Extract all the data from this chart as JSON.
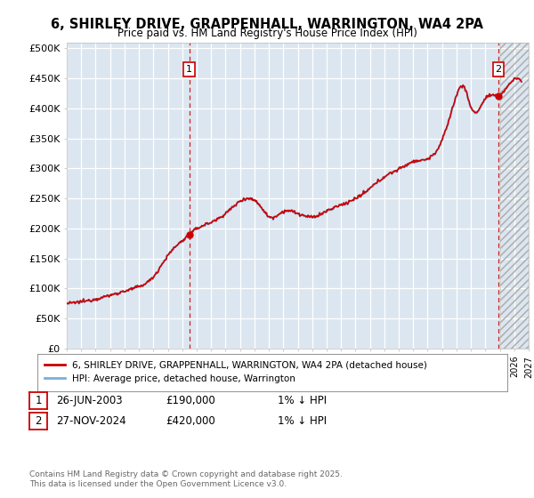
{
  "title": "6, SHIRLEY DRIVE, GRAPPENHALL, WARRINGTON, WA4 2PA",
  "subtitle": "Price paid vs. HM Land Registry's House Price Index (HPI)",
  "plot_bg_color": "#dce6f0",
  "ylabel_ticks": [
    "£0",
    "£50K",
    "£100K",
    "£150K",
    "£200K",
    "£250K",
    "£300K",
    "£350K",
    "£400K",
    "£450K",
    "£500K"
  ],
  "ytick_values": [
    0,
    50000,
    100000,
    150000,
    200000,
    250000,
    300000,
    350000,
    400000,
    450000,
    500000
  ],
  "ylim": [
    0,
    510000
  ],
  "xlim_start": 1995,
  "xlim_end": 2027,
  "hpi_color": "#7ab0d8",
  "price_color": "#cc0000",
  "marker1_x": 2003.48,
  "marker1_y": 190000,
  "marker2_x": 2024.9,
  "marker2_y": 420000,
  "legend_line1": "6, SHIRLEY DRIVE, GRAPPENHALL, WARRINGTON, WA4 2PA (detached house)",
  "legend_line2": "HPI: Average price, detached house, Warrington",
  "note1_num": "1",
  "note1_date": "26-JUN-2003",
  "note1_price": "£190,000",
  "note1_hpi": "1% ↓ HPI",
  "note2_num": "2",
  "note2_date": "27-NOV-2024",
  "note2_price": "£420,000",
  "note2_hpi": "1% ↓ HPI",
  "footer": "Contains HM Land Registry data © Crown copyright and database right 2025.\nThis data is licensed under the Open Government Licence v3.0.",
  "hpi_breakpoints": [
    1995.0,
    1996.0,
    1997.0,
    1998.0,
    1999.0,
    2000.0,
    2001.0,
    2002.0,
    2003.0,
    2003.5,
    2004.0,
    2005.0,
    2006.0,
    2007.0,
    2007.75,
    2008.5,
    2009.0,
    2010.0,
    2011.0,
    2012.0,
    2013.0,
    2014.0,
    2015.0,
    2016.0,
    2017.0,
    2018.0,
    2019.0,
    2020.0,
    2021.0,
    2022.0,
    2022.5,
    2023.0,
    2023.5,
    2024.0,
    2024.9,
    2025.5,
    2026.5
  ],
  "hpi_values": [
    75000,
    78000,
    82000,
    88000,
    95000,
    103000,
    120000,
    155000,
    180000,
    190000,
    200000,
    210000,
    225000,
    245000,
    250000,
    235000,
    220000,
    228000,
    225000,
    218000,
    228000,
    238000,
    248000,
    265000,
    285000,
    298000,
    310000,
    315000,
    345000,
    420000,
    435000,
    400000,
    395000,
    415000,
    420000,
    435000,
    445000
  ]
}
